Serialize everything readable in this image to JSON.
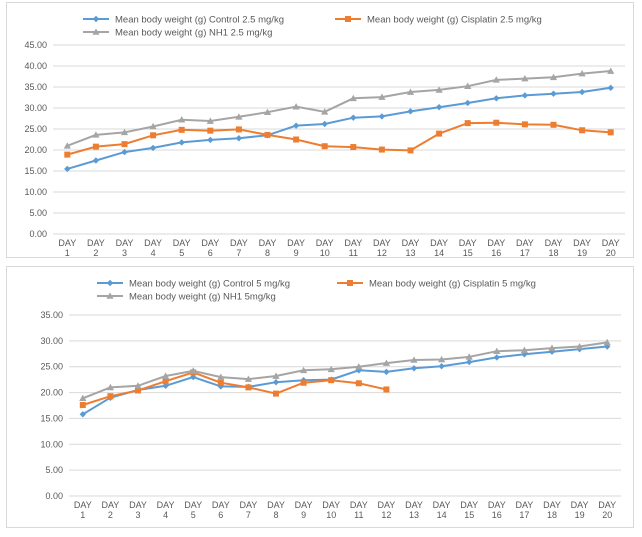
{
  "chart_data": [
    {
      "type": "line",
      "categories": [
        "DAY 1",
        "DAY 2",
        "DAY 3",
        "DAY 4",
        "DAY 5",
        "DAY 6",
        "DAY 7",
        "DAY 8",
        "DAY 9",
        "DAY 10",
        "DAY 11",
        "DAY 12",
        "DAY 13",
        "DAY 14",
        "DAY 15",
        "DAY 16",
        "DAY 17",
        "DAY 18",
        "DAY 19",
        "DAY 20"
      ],
      "y_tick_labels": [
        "0.00",
        "5.00",
        "10.00",
        "15.00",
        "20.00",
        "25.00",
        "30.00",
        "35.00",
        "40.00",
        "45.00"
      ],
      "ylim": [
        0,
        45
      ],
      "grid": true,
      "legend_position": "top",
      "series": [
        {
          "name": "Mean body weight (g) Control 2.5 mg/kg",
          "color": "#5b9bd5",
          "marker": "diamond",
          "values": [
            15.5,
            17.5,
            19.5,
            20.5,
            21.8,
            22.4,
            22.8,
            23.5,
            25.8,
            26.2,
            27.7,
            28.0,
            29.2,
            30.2,
            31.2,
            32.3,
            33.0,
            33.4,
            33.8,
            34.8
          ]
        },
        {
          "name": "Mean body weight (g) Cisplatin 2.5 mg/kg",
          "color": "#ed7d31",
          "marker": "square",
          "values": [
            18.9,
            20.8,
            21.4,
            23.5,
            24.8,
            24.6,
            24.9,
            23.6,
            22.5,
            20.9,
            20.7,
            20.1,
            19.9,
            23.9,
            26.4,
            26.5,
            26.1,
            26.0,
            24.7,
            24.2
          ]
        },
        {
          "name": "Mean body weight (g) NH1 2.5 mg/kg",
          "color": "#a5a5a5",
          "marker": "triangle",
          "values": [
            21.0,
            23.6,
            24.2,
            25.6,
            27.2,
            26.9,
            27.9,
            29.0,
            30.3,
            29.1,
            32.3,
            32.6,
            33.8,
            34.3,
            35.2,
            36.7,
            37.0,
            37.3,
            38.2,
            38.8
          ]
        }
      ]
    },
    {
      "type": "line",
      "categories": [
        "DAY 1",
        "DAY 2",
        "DAY 3",
        "DAY 4",
        "DAY 5",
        "DAY 6",
        "DAY 7",
        "DAY 8",
        "DAY 9",
        "DAY 10",
        "DAY 11",
        "DAY 12",
        "DAY 13",
        "DAY 14",
        "DAY 15",
        "DAY 16",
        "DAY 17",
        "DAY 18",
        "DAY 19",
        "DAY 20"
      ],
      "y_tick_labels": [
        "0.00",
        "5.00",
        "10.00",
        "15.00",
        "20.00",
        "25.00",
        "30.00",
        "35.00"
      ],
      "ylim": [
        0,
        35
      ],
      "grid": true,
      "legend_position": "top",
      "series": [
        {
          "name": "Mean body weight (g) Control 5 mg/kg",
          "color": "#5b9bd5",
          "marker": "diamond",
          "values": [
            15.8,
            19.0,
            20.5,
            21.3,
            23.0,
            21.2,
            21.1,
            22.0,
            22.4,
            22.5,
            24.3,
            24.0,
            24.7,
            25.1,
            25.9,
            26.8,
            27.4,
            27.9,
            28.4,
            28.9
          ]
        },
        {
          "name": "Mean body weight (g) Cisplatin 5 mg/kg",
          "color": "#ed7d31",
          "marker": "square",
          "values": [
            17.6,
            19.3,
            20.4,
            22.2,
            23.9,
            21.9,
            21.0,
            19.8,
            21.9,
            22.4,
            21.8,
            20.6,
            null,
            null,
            null,
            null,
            null,
            null,
            null,
            null
          ]
        },
        {
          "name": "Mean body weight (g) NH1 5mg/kg",
          "color": "#a5a5a5",
          "marker": "triangle",
          "values": [
            18.9,
            21.0,
            21.3,
            23.2,
            24.2,
            23.0,
            22.6,
            23.2,
            24.3,
            24.5,
            25.0,
            25.7,
            26.3,
            26.4,
            26.9,
            28.0,
            28.2,
            28.6,
            28.9,
            29.7
          ]
        }
      ]
    }
  ]
}
